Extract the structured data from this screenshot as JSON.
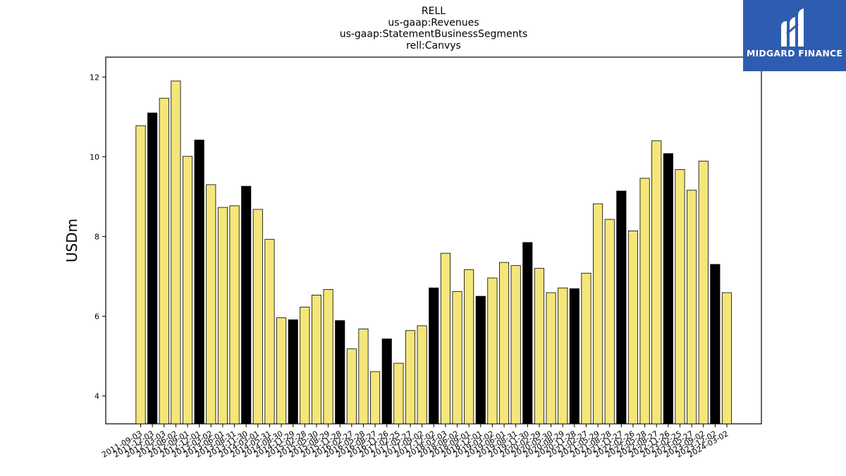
{
  "chart_data": {
    "type": "bar",
    "title_lines": [
      "RELL",
      "us-gaap:Revenues",
      "us-gaap:StatementBusinessSegments",
      "rell:Canvys"
    ],
    "ylabel": "USDm",
    "xlabel": "",
    "ylim": [
      3.3,
      12.5
    ],
    "yticks": [
      4,
      6,
      8,
      10,
      12
    ],
    "colors": {
      "bar": "#f5e67a",
      "highlight": "#000000",
      "edge": "#000000"
    },
    "categories": [
      "2011-09-03",
      "2011-12-03",
      "2012-03-03",
      "2012-06-02",
      "2012-09-01",
      "2012-12-01",
      "2013-03-02",
      "2013-06-01",
      "2013-08-31",
      "2013-11-30",
      "2014-03-01",
      "2014-05-31",
      "2014-08-30",
      "2014-11-29",
      "2015-02-28",
      "2015-05-30",
      "2015-08-29",
      "2015-11-28",
      "2016-02-27",
      "2016-05-28",
      "2016-08-27",
      "2016-11-26",
      "2017-02-25",
      "2017-05-27",
      "2017-09-02",
      "2017-12-02",
      "2018-03-03",
      "2018-06-02",
      "2018-09-01",
      "2018-12-01",
      "2019-03-02",
      "2019-06-01",
      "2019-08-31",
      "2019-11-30",
      "2020-02-29",
      "2020-05-30",
      "2020-08-29",
      "2020-11-28",
      "2021-02-27",
      "2021-05-29",
      "2021-08-28",
      "2021-11-27",
      "2022-02-26",
      "2022-05-28",
      "2022-08-27",
      "2022-11-26",
      "2023-02-25",
      "2023-05-27",
      "2023-09-02",
      "2023-12-02",
      "2024-03-02"
    ],
    "values": [
      10.78,
      11.1,
      11.47,
      11.9,
      10.01,
      10.42,
      9.3,
      8.73,
      8.77,
      9.26,
      8.68,
      7.93,
      5.96,
      5.91,
      6.23,
      6.53,
      6.67,
      5.89,
      5.18,
      5.68,
      4.61,
      5.43,
      4.82,
      5.64,
      5.76,
      6.71,
      7.58,
      6.62,
      7.17,
      6.5,
      6.96,
      7.35,
      7.27,
      7.85,
      7.2,
      6.59,
      6.71,
      6.69,
      7.08,
      8.82,
      8.43,
      9.14,
      8.14,
      9.46,
      10.4,
      10.08,
      9.68,
      9.16,
      9.89,
      7.3,
      6.59
    ],
    "highlight": [
      false,
      true,
      false,
      false,
      false,
      true,
      false,
      false,
      false,
      true,
      false,
      false,
      false,
      true,
      false,
      false,
      false,
      true,
      false,
      false,
      false,
      true,
      false,
      false,
      false,
      true,
      false,
      false,
      false,
      true,
      false,
      false,
      false,
      true,
      false,
      false,
      false,
      true,
      false,
      false,
      false,
      true,
      false,
      false,
      false,
      true,
      false,
      false,
      false,
      true,
      false
    ]
  },
  "logo": {
    "text": "MIDGARD FINANCE",
    "bg": "#2e5cb0"
  }
}
